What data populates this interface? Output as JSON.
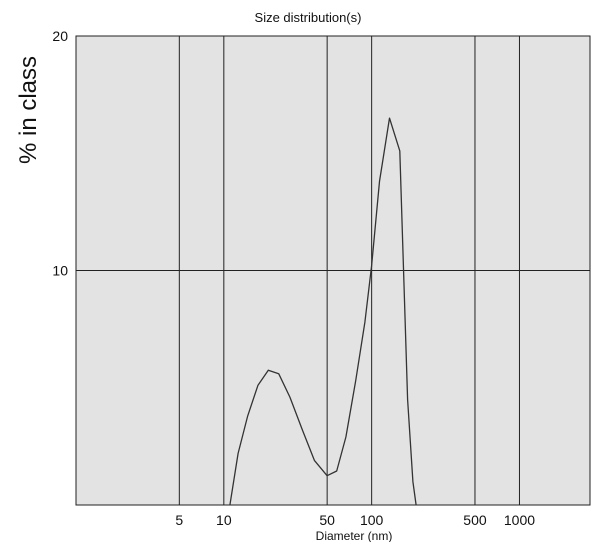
{
  "chart_data": {
    "type": "line",
    "title": "Size distribution(s)",
    "xlabel": "Diameter (nm)",
    "ylabel": "% in class",
    "x_scale": "log",
    "xlim": [
      1,
      3000
    ],
    "ylim": [
      0,
      20
    ],
    "x_ticks": [
      5,
      10,
      50,
      100,
      500,
      1000
    ],
    "y_ticks": [
      10,
      20
    ],
    "grid": true,
    "series": [
      {
        "x": [
          11,
          12.5,
          14.5,
          17,
          20,
          23.5,
          28,
          34,
          41,
          50,
          58,
          67,
          78,
          90,
          100,
          113,
          132,
          155,
          175,
          190,
          200
        ],
        "y": [
          0,
          2.2,
          3.8,
          5.1,
          5.75,
          5.6,
          4.6,
          3.2,
          1.9,
          1.25,
          1.45,
          2.9,
          5.3,
          7.8,
          10.2,
          13.8,
          16.5,
          15.1,
          4.5,
          1.0,
          0
        ]
      }
    ]
  },
  "colors": {
    "plot_background": "#e3e3e3",
    "grid": "#222222",
    "line": "#333333"
  }
}
